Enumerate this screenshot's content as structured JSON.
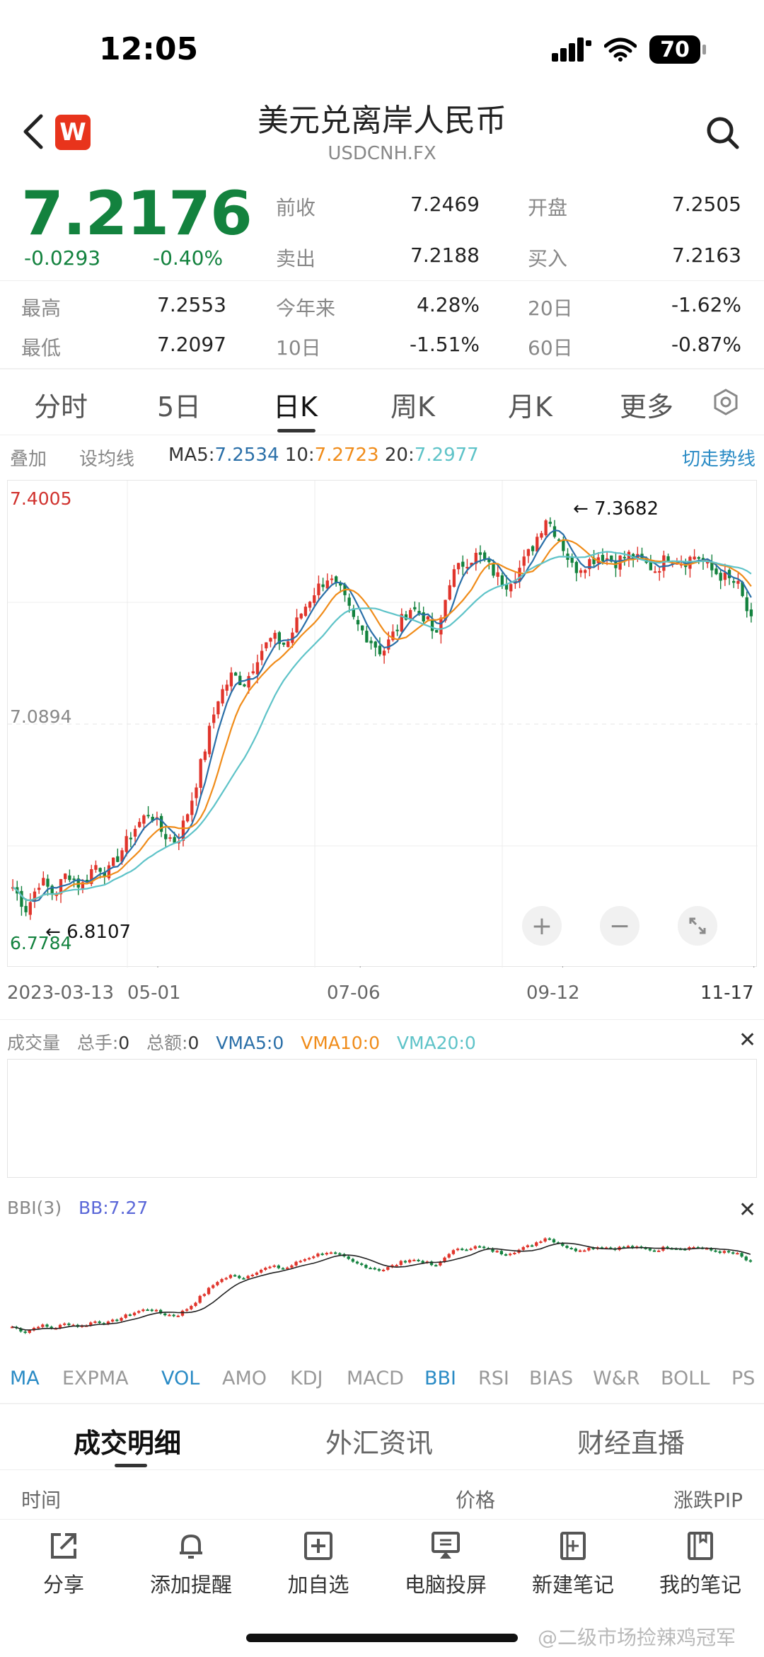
{
  "status": {
    "time": "12:05",
    "battery": "70"
  },
  "header": {
    "title": "美元兑离岸人民币",
    "subtitle": "USDCNH.FX",
    "logo": "W"
  },
  "quote": {
    "price": "7.2176",
    "change": "-0.0293",
    "change_pct": "-0.40%",
    "rows": [
      {
        "l1": "前收",
        "v1": "7.2469",
        "l2": "开盘",
        "v2": "7.2505"
      },
      {
        "l1": "卖出",
        "v1": "7.2188",
        "l2": "买入",
        "v2": "7.2163"
      }
    ],
    "stats": [
      {
        "l1": "最高",
        "v1": "7.2553",
        "l2": "今年来",
        "v2": "4.28%",
        "l3": "20日",
        "v3": "-1.62%"
      },
      {
        "l1": "最低",
        "v1": "7.2097",
        "l2": "10日",
        "v2": "-1.51%",
        "l3": "60日",
        "v3": "-0.87%"
      }
    ]
  },
  "tabs": [
    "分时",
    "5日",
    "日K",
    "周K",
    "月K",
    "更多"
  ],
  "active_tab": "日K",
  "toolbar": {
    "overlay": "叠加",
    "set_ma": "设均线",
    "ma5_label": "MA5:",
    "ma5_value": "7.2534",
    "ma10_label": "10:",
    "ma10_value": "7.2723",
    "ma20_label": "20:",
    "ma20_value": "7.2977",
    "switch": "切走势线"
  },
  "colors": {
    "up": "#e0342b",
    "down": "#13823e",
    "ma5": "#2a6fa8",
    "ma10": "#f08c1a",
    "ma20": "#5ec3c8",
    "accent": "#2a8bc5"
  },
  "chart_data": {
    "type": "candlestick",
    "y_top_label": "7.4005",
    "y_mid_label": "7.0894",
    "y_bottom_label": "6.7784",
    "high_annotation": "7.3682",
    "low_annotation": "6.8107",
    "ylim": [
      6.7784,
      7.4005
    ],
    "x_labels": [
      "2023-03-13",
      "05-01",
      "07-06",
      "09-12",
      "11-17"
    ],
    "close_path": [
      6.87,
      6.84,
      6.88,
      6.86,
      6.89,
      6.87,
      6.9,
      6.89,
      6.92,
      6.95,
      6.97,
      6.94,
      6.93,
      6.98,
      7.05,
      7.12,
      7.15,
      7.14,
      7.18,
      7.2,
      7.19,
      7.23,
      7.26,
      7.28,
      7.26,
      7.22,
      7.2,
      7.18,
      7.21,
      7.24,
      7.23,
      7.2,
      7.28,
      7.3,
      7.31,
      7.29,
      7.27,
      7.29,
      7.32,
      7.36,
      7.33,
      7.29,
      7.3,
      7.31,
      7.3,
      7.31,
      7.3,
      7.29,
      7.31,
      7.3,
      7.31,
      7.29,
      7.28,
      7.27,
      7.22
    ]
  },
  "volume": {
    "title": "成交量",
    "total_hand": "总手:",
    "total_hand_v": "0",
    "total_amt": "总额:",
    "total_amt_v": "0",
    "vma5": "VMA5:0",
    "vma10": "VMA10:0",
    "vma20": "VMA20:0"
  },
  "bbi": {
    "title": "BBI(3)",
    "value": "BB:7.27"
  },
  "indicators": [
    "MA",
    "EXPMA",
    "VOL",
    "AMO",
    "KDJ",
    "MACD",
    "BBI",
    "RSI",
    "BIAS",
    "W&R",
    "BOLL",
    "PS"
  ],
  "active_indicators": [
    "MA",
    "VOL",
    "BBI"
  ],
  "bottom_tabs": [
    "成交明细",
    "外汇资讯",
    "财经直播"
  ],
  "table_headers": [
    "时间",
    "价格",
    "涨跌PIP"
  ],
  "bottom_bar": [
    "分享",
    "添加提醒",
    "加自选",
    "电脑投屏",
    "新建笔记",
    "我的笔记"
  ],
  "watermark": "@二级市场捡辣鸡冠军"
}
